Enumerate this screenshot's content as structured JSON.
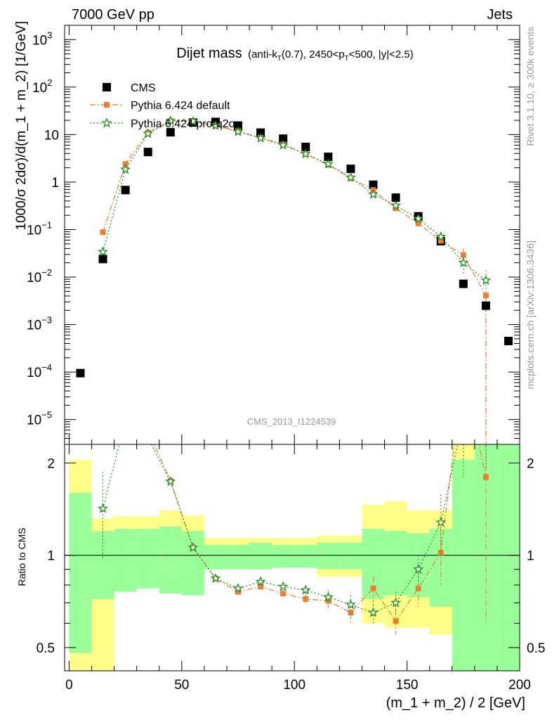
{
  "header": {
    "energy_label": "7000 GeV pp",
    "process_label": "Jets"
  },
  "side_labels": {
    "rivet": "Rivet 3.1.10, ≥ 300k events",
    "mcplots": "mcplots.cern.ch [arXiv:1306.3436]"
  },
  "chart_data": {
    "type": "scatter",
    "title_main": "Dijet mass",
    "title_sub_1": "(anti-k",
    "title_sub_T1": "T",
    "title_sub_2": "(0.7), 2450<p",
    "title_sub_T2": "T",
    "title_sub_3": "<500, |y|<2.5)",
    "analysis_id": "CMS_2013_I1224539",
    "xlabel": "(m_1 + m_2) / 2 [GeV]",
    "ylabel": "1000/σ 2dσ)/d(m_1 + m_2) [1/GeV]",
    "ratio_ylabel": "Ratio to CMS",
    "xlim": [
      -2,
      200
    ],
    "ylim": [
      3e-06,
      2000
    ],
    "yscale": "log",
    "ratio_ylim": [
      0.42,
      2.3
    ],
    "ratio_yscale": "log",
    "x_ticks": [
      {
        "value": 0,
        "label": "0"
      },
      {
        "value": 50,
        "label": "50"
      },
      {
        "value": 100,
        "label": "100"
      },
      {
        "value": 150,
        "label": "150"
      },
      {
        "value": 200,
        "label": "200"
      }
    ],
    "y_ticks": [
      {
        "value": 1e-05,
        "base": "10",
        "exp": "−5"
      },
      {
        "value": 0.0001,
        "base": "10",
        "exp": "−4"
      },
      {
        "value": 0.001,
        "base": "10",
        "exp": "−3"
      },
      {
        "value": 0.01,
        "base": "10",
        "exp": "−2"
      },
      {
        "value": 0.1,
        "base": "10",
        "exp": "−1"
      },
      {
        "value": 1,
        "base": "1",
        "exp": ""
      },
      {
        "value": 10,
        "base": "10",
        "exp": ""
      },
      {
        "value": 100,
        "base": "10",
        "exp": "2"
      },
      {
        "value": 1000,
        "base": "10",
        "exp": "3"
      }
    ],
    "ratio_ticks": [
      {
        "value": 0.5,
        "label": "0.5"
      },
      {
        "value": 1,
        "label": "1"
      },
      {
        "value": 2,
        "label": "2"
      }
    ],
    "legend_position": "top-left",
    "cms": {
      "name": "CMS",
      "color": "#000000",
      "x": [
        5,
        15,
        25,
        35,
        45,
        55,
        65,
        75,
        85,
        95,
        105,
        115,
        125,
        135,
        145,
        155,
        165,
        175,
        185,
        195
      ],
      "y": [
        9.5e-05,
        0.024,
        0.68,
        4.3,
        11.2,
        18,
        18.5,
        15.5,
        11,
        8.2,
        5.5,
        3.4,
        1.9,
        0.88,
        0.47,
        0.19,
        0.057,
        0.0072,
        0.0025,
        0.00045
      ]
    },
    "band": {
      "x_edges": [
        0,
        10,
        20,
        30,
        40,
        50,
        60,
        70,
        80,
        90,
        100,
        110,
        120,
        130,
        140,
        150,
        160,
        170,
        180,
        190,
        200
      ],
      "inner_low": [
        0.48,
        0.72,
        0.76,
        0.78,
        0.75,
        0.74,
        0.9,
        0.9,
        0.9,
        0.91,
        0.91,
        0.9,
        0.9,
        0.72,
        0.74,
        0.73,
        0.68,
        0.4,
        0.4,
        0.4
      ],
      "inner_high": [
        1.6,
        1.2,
        1.22,
        1.22,
        1.24,
        1.2,
        1.08,
        1.08,
        1.1,
        1.08,
        1.08,
        1.1,
        1.1,
        1.22,
        1.2,
        1.18,
        1.22,
        2.05,
        2.3,
        2.3
      ],
      "outer_low": [
        0.4,
        0.42,
        0.86,
        0.88,
        0.86,
        0.82,
        0.92,
        0.93,
        0.93,
        0.93,
        0.93,
        0.85,
        0.85,
        0.6,
        0.58,
        0.58,
        0.55,
        0.4,
        0.4,
        0.4
      ],
      "outer_high": [
        2.05,
        1.32,
        1.34,
        1.34,
        1.4,
        1.35,
        1.14,
        1.14,
        1.14,
        1.14,
        1.14,
        1.16,
        1.16,
        1.46,
        1.5,
        1.4,
        1.4,
        2.3,
        2.3,
        2.3
      ],
      "inner_color": "#99ff99",
      "outer_color": "#ffff88"
    },
    "series": [
      {
        "name": "Pythia 6.424 default",
        "color": "#ee7d2c",
        "marker": "square",
        "dash": "8,3,2,3",
        "x": [
          15,
          25,
          35,
          45,
          55,
          65,
          75,
          85,
          95,
          105,
          115,
          125,
          135,
          145,
          155,
          165,
          175,
          185
        ],
        "y": [
          0.088,
          2.4,
          11.0,
          19.5,
          19.0,
          15.5,
          11.8,
          8.6,
          6.2,
          3.9,
          2.3,
          1.2,
          0.68,
          0.28,
          0.135,
          0.058,
          0.029,
          0.0041
        ],
        "ratio": [
          3.6,
          3.5,
          2.55,
          1.75,
          1.06,
          0.84,
          0.76,
          0.79,
          0.75,
          0.72,
          0.71,
          0.65,
          0.78,
          0.61,
          0.78,
          1.02,
          4.0,
          1.8
        ],
        "ratio_err": [
          0.3,
          0.1,
          0.05,
          0.03,
          0.02,
          0.02,
          0.02,
          0.02,
          0.02,
          0.03,
          0.04,
          0.05,
          0.07,
          0.06,
          0.1,
          0.22,
          1.0,
          1.2
        ]
      },
      {
        "name": "Pythia 6.424 pro-q2o",
        "color": "#1a8c1a",
        "marker": "star",
        "dash": "2,3",
        "x": [
          15,
          25,
          35,
          45,
          55,
          65,
          75,
          85,
          95,
          105,
          115,
          125,
          135,
          145,
          155,
          165,
          175,
          185
        ],
        "y": [
          0.034,
          1.85,
          10.5,
          19.5,
          19.0,
          15.5,
          11.5,
          8.4,
          6.0,
          3.9,
          2.4,
          1.25,
          0.55,
          0.32,
          0.17,
          0.071,
          0.02,
          0.0085
        ],
        "ratio": [
          1.42,
          2.75,
          2.42,
          1.74,
          1.06,
          0.84,
          0.78,
          0.82,
          0.79,
          0.77,
          0.73,
          0.69,
          0.65,
          0.7,
          0.9,
          1.28,
          2.8,
          3.4
        ],
        "ratio_err": [
          0.45,
          0.1,
          0.05,
          0.03,
          0.02,
          0.02,
          0.02,
          0.02,
          0.02,
          0.03,
          0.04,
          0.05,
          0.06,
          0.06,
          0.1,
          0.3,
          1.0,
          1.5
        ]
      }
    ]
  }
}
